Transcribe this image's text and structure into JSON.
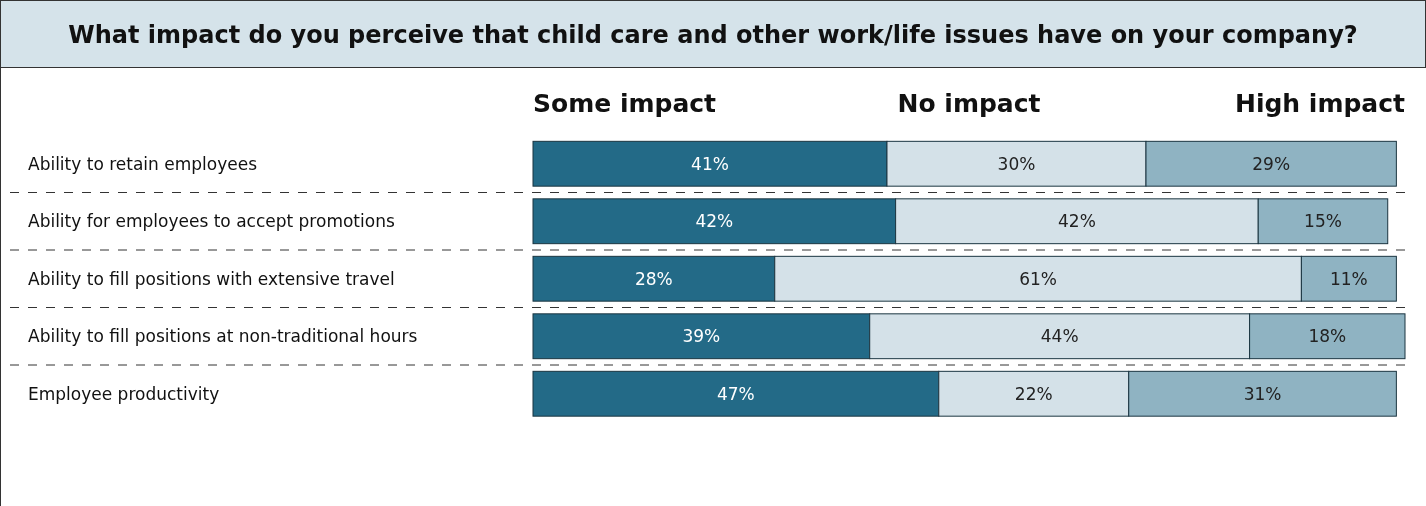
{
  "chart_data": {
    "type": "bar",
    "orientation": "horizontal",
    "stacked": true,
    "title": "What impact do you perceive that child care and other work/life issues have on your company?",
    "categories": [
      "Ability to retain employees",
      "Ability for employees to accept promotions",
      "Ability to fill positions with extensive travel",
      "Ability to fill positions at non-traditional hours",
      "Employee productivity"
    ],
    "series": [
      {
        "name": "Some impact",
        "color": "#236a87",
        "values": [
          41,
          42,
          28,
          39,
          47
        ],
        "value_labels": [
          "41%",
          "42%",
          "28%",
          "39%",
          "47%"
        ]
      },
      {
        "name": "No impact",
        "color": "#d4e1e8",
        "values": [
          30,
          42,
          61,
          44,
          22
        ],
        "value_labels": [
          "30%",
          "42%",
          "61%",
          "44%",
          "22%"
        ]
      },
      {
        "name": "High impact",
        "color": "#8fb3c2",
        "values": [
          29,
          15,
          11,
          18,
          31
        ],
        "value_labels": [
          "29%",
          "15%",
          "11%",
          "18%",
          "31%"
        ]
      }
    ],
    "legend": "top"
  }
}
